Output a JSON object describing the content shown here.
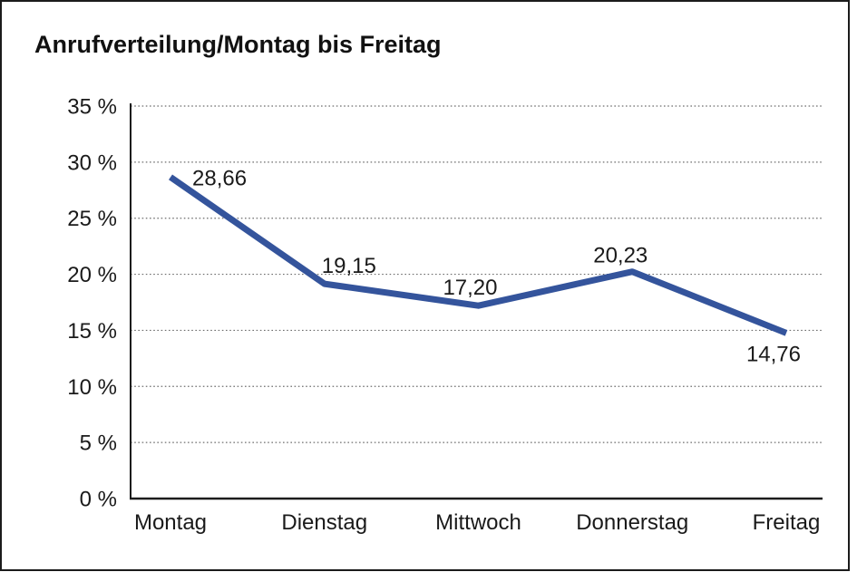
{
  "chart_data": {
    "type": "line",
    "title": "Anrufverteilung/Montag bis Freitag",
    "categories": [
      "Montag",
      "Dienstag",
      "Mittwoch",
      "Donnerstag",
      "Freitag"
    ],
    "values": [
      28.66,
      19.15,
      17.2,
      20.23,
      14.76
    ],
    "value_labels": [
      "28,66",
      "19,15",
      "17,20",
      "20,23",
      "14,76"
    ],
    "xlabel": "",
    "ylabel": "",
    "ylim": [
      0,
      35
    ],
    "ytick_step": 5,
    "ytick_labels": [
      "0 %",
      "5 %",
      "10 %",
      "15 %",
      "20 %",
      "25 %",
      "30 %",
      "35 %"
    ],
    "legend": "none",
    "grid": "horizontal-dotted",
    "line_color": "#34549c",
    "grid_color": "#6e6e6e",
    "axis_color": "#1b1b1b",
    "text_color": "#1a1a1a"
  }
}
